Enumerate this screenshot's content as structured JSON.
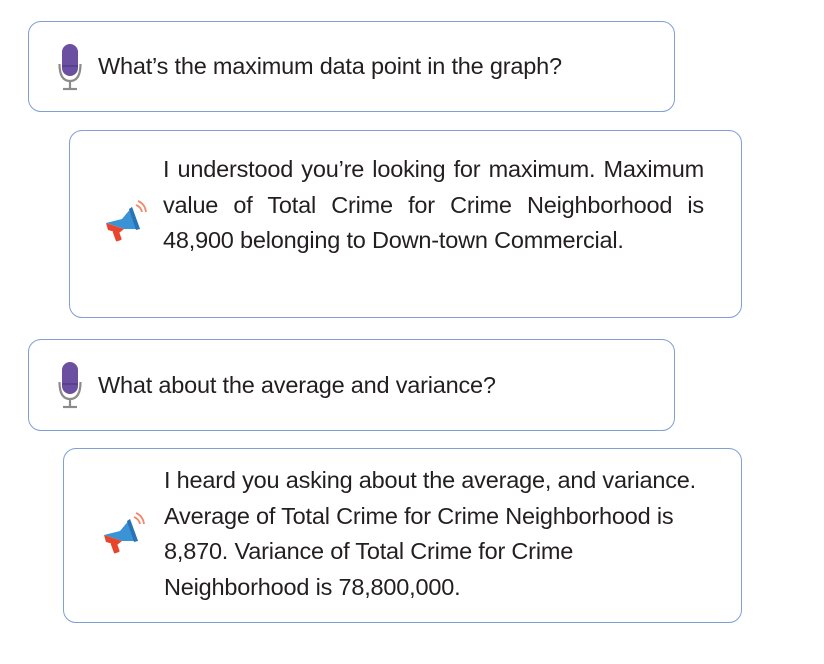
{
  "conversation": [
    {
      "role": "user",
      "icon": "microphone-icon",
      "text": "What’s the maximum data point in the graph?"
    },
    {
      "role": "assistant",
      "icon": "megaphone-icon",
      "text": "I understood you’re looking for maximum. Maximum value of Total Crime for Crime Neighborhood is 48,900 belonging to Down-town Commercial."
    },
    {
      "role": "user",
      "icon": "microphone-icon",
      "text": "What about the average and variance?"
    },
    {
      "role": "assistant",
      "icon": "megaphone-icon",
      "text": "I heard you asking about the average, and variance. Average of Total Crime for Crime Neighborhood is 8,870. Variance of Total Crime for Crime Neighborhood is 78,800,000."
    }
  ],
  "colors": {
    "bubble_border": "#7f9fd6",
    "mic_purple": "#6b4fa0",
    "megaphone_blue": "#3a93d4",
    "megaphone_red": "#e8452c",
    "sound_waves": "#f08a6c",
    "text": "#231f20"
  }
}
